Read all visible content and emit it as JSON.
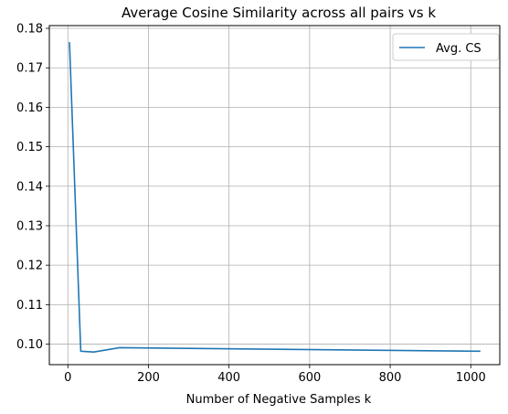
{
  "chart_data": {
    "type": "line",
    "title": "Average Cosine Similarity across all pairs vs k",
    "xlabel": "Number of Negative Samples k",
    "ylabel": "",
    "xlim": [
      -46,
      1072
    ],
    "ylim": [
      0.0948,
      0.1807
    ],
    "x_ticks": [
      0,
      200,
      400,
      600,
      800,
      1000
    ],
    "x_tick_labels": [
      "0",
      "200",
      "400",
      "600",
      "800",
      "1000"
    ],
    "y_ticks": [
      0.1,
      0.11,
      0.12,
      0.13,
      0.14,
      0.15,
      0.16,
      0.17,
      0.18
    ],
    "y_tick_labels": [
      "0.10",
      "0.11",
      "0.12",
      "0.13",
      "0.14",
      "0.15",
      "0.16",
      "0.17",
      "0.18"
    ],
    "grid": true,
    "legend_position": "top-right",
    "series": [
      {
        "name": "Avg. CS",
        "color": "#1f77b4",
        "x": [
          4,
          32,
          64,
          128,
          1024
        ],
        "y": [
          0.1765,
          0.0982,
          0.098,
          0.0991,
          0.0982
        ]
      }
    ]
  }
}
